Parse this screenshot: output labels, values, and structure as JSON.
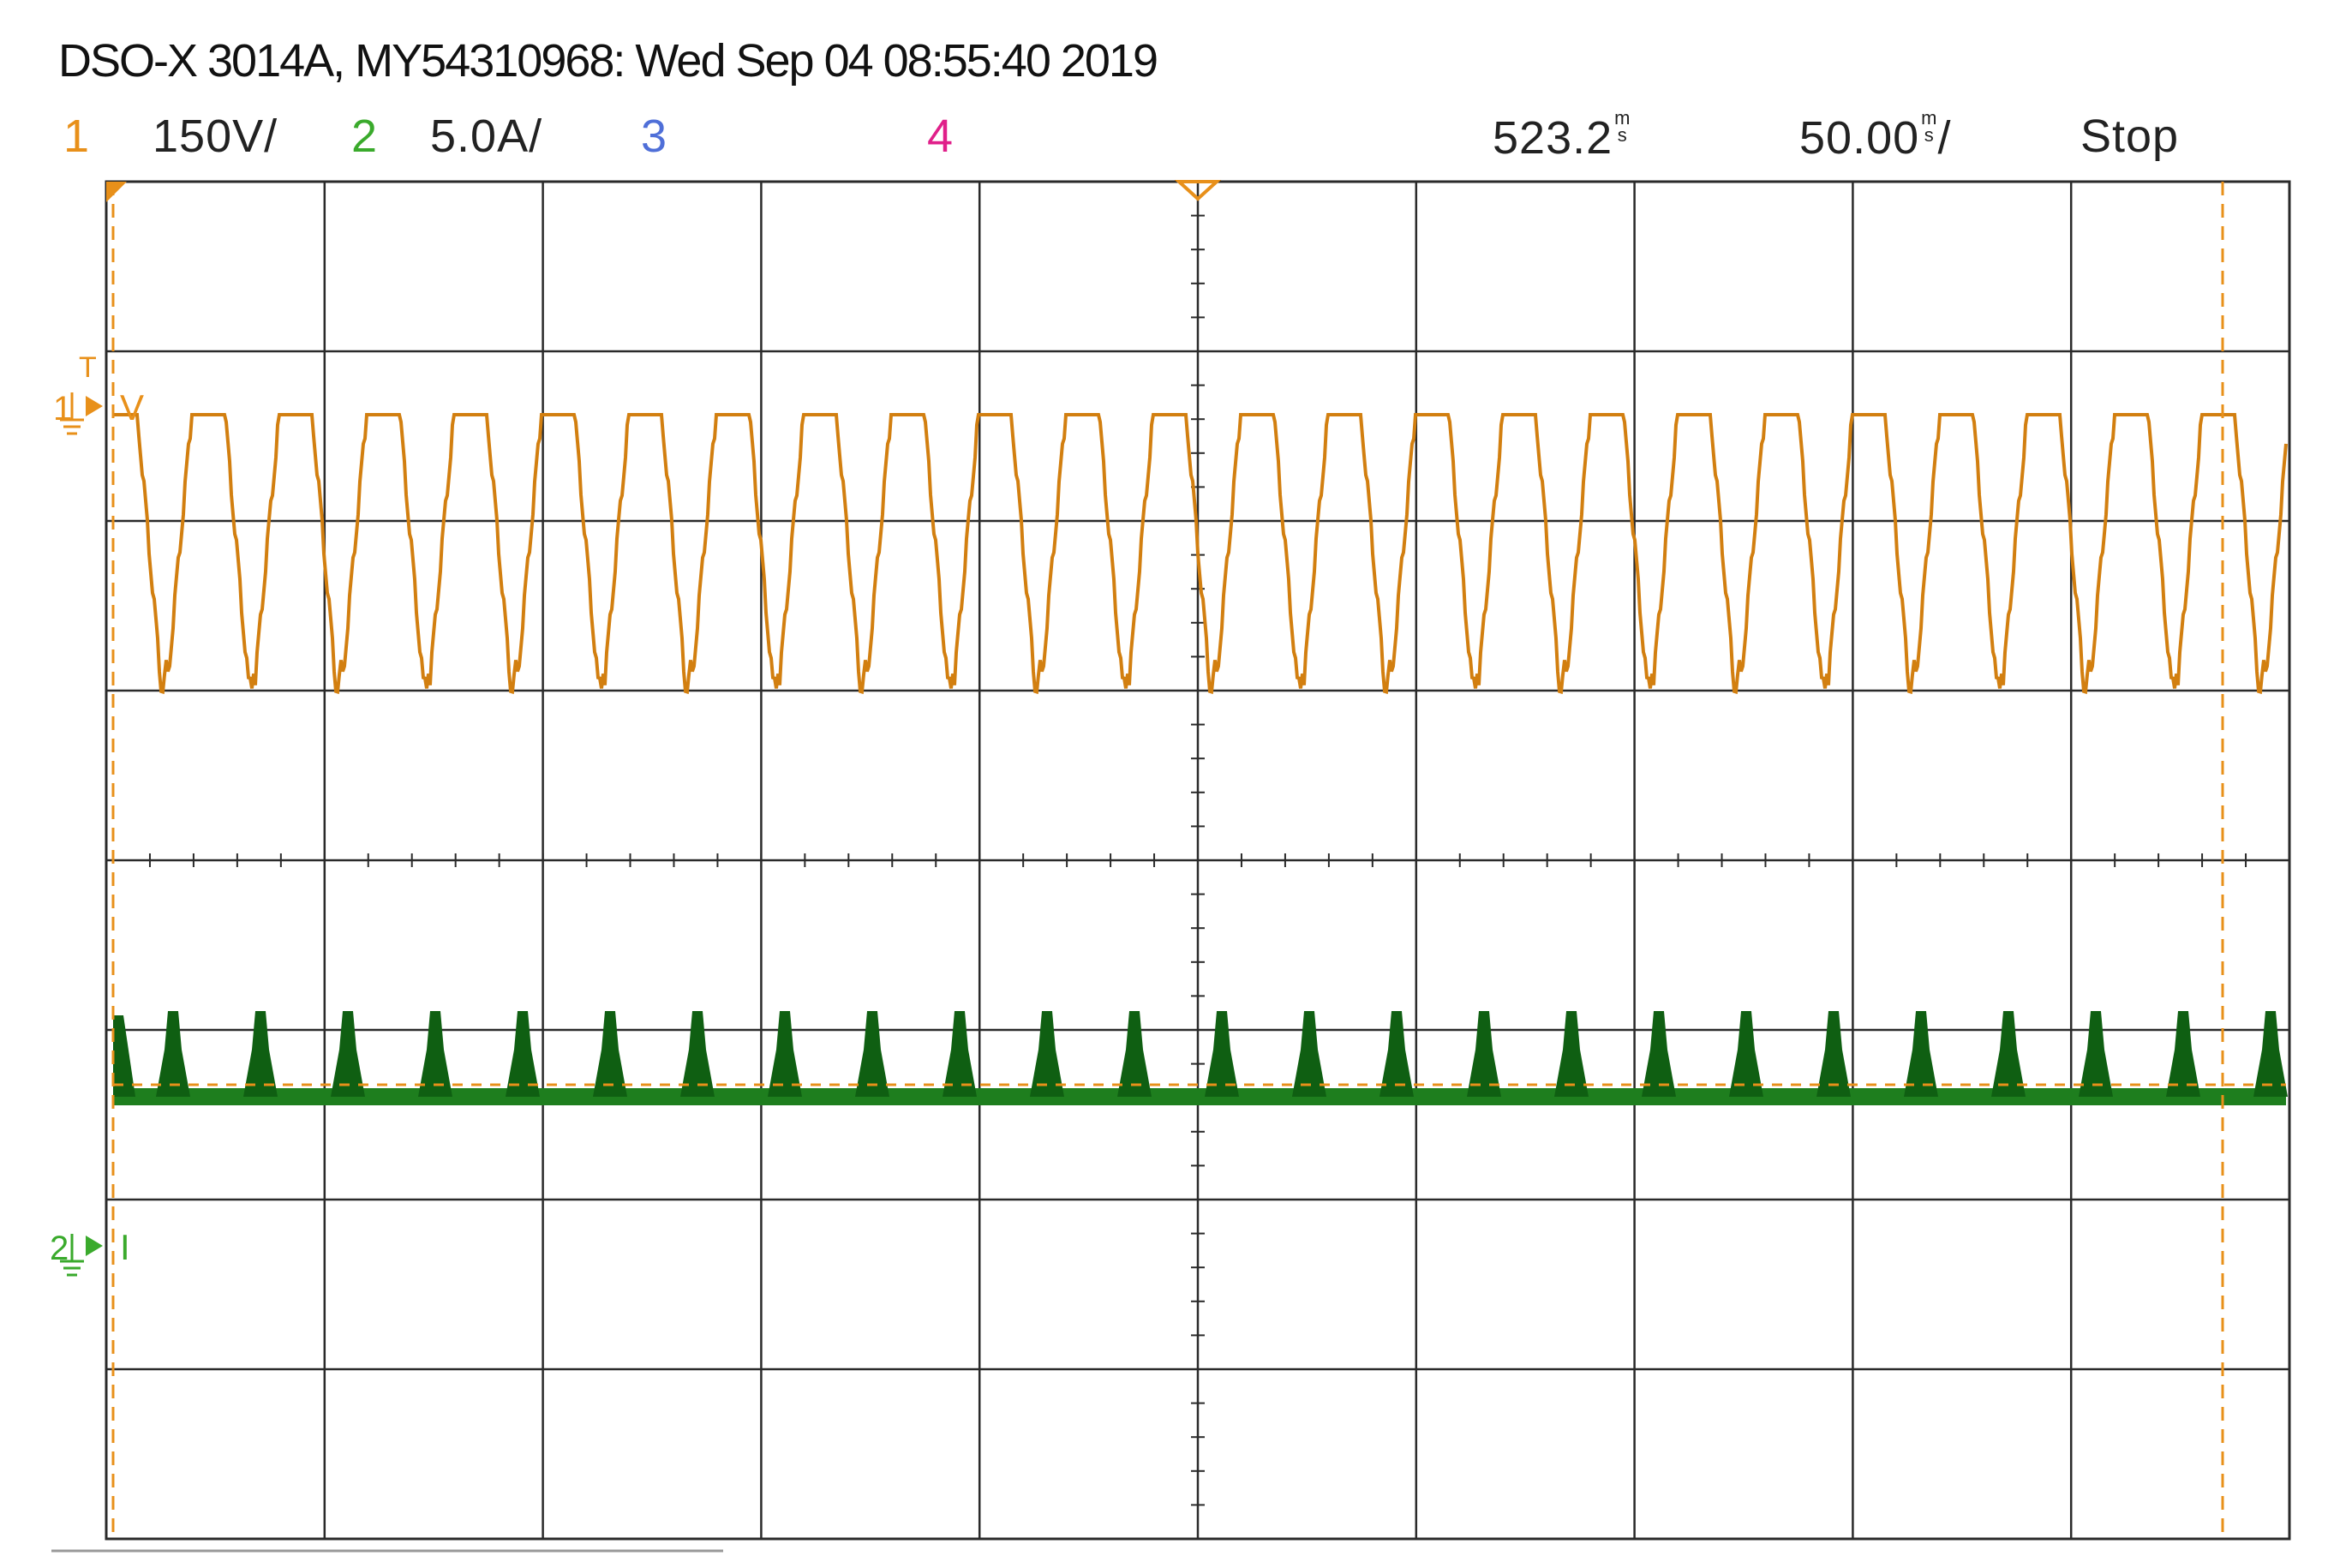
{
  "header": {
    "title": "DSO-X 3014A, MY54310968: Wed Sep 04 08:55:40 2019"
  },
  "channels": [
    {
      "number": "1",
      "scale": "150V/",
      "color": "#e8901a"
    },
    {
      "number": "2",
      "scale": "5.0A/",
      "color": "#3aaa2c"
    },
    {
      "number": "3",
      "scale": "",
      "color": "#4f6fd8"
    },
    {
      "number": "4",
      "scale": "",
      "color": "#e0208a"
    }
  ],
  "timebase": {
    "delay_value": "523.2",
    "delay_unit_top": "m",
    "delay_unit_bottom": "s",
    "scale_value": "50.00",
    "scale_unit_top": "m",
    "scale_unit_bottom": "s",
    "scale_suffix": "/"
  },
  "run_state": "Stop",
  "markers": {
    "ch1_ground_number": "1",
    "ch1_label": "V",
    "ch1_trigger_letter": "T",
    "ch2_ground_number": "2",
    "ch2_label": "I"
  },
  "colors": {
    "grid": "#2a2a2a",
    "ch1_trace": "#d27f10",
    "ch2_trace": "#1e7e1e",
    "ch2_trace_dark": "#0f5f12",
    "cursor": "#e8901a"
  }
}
